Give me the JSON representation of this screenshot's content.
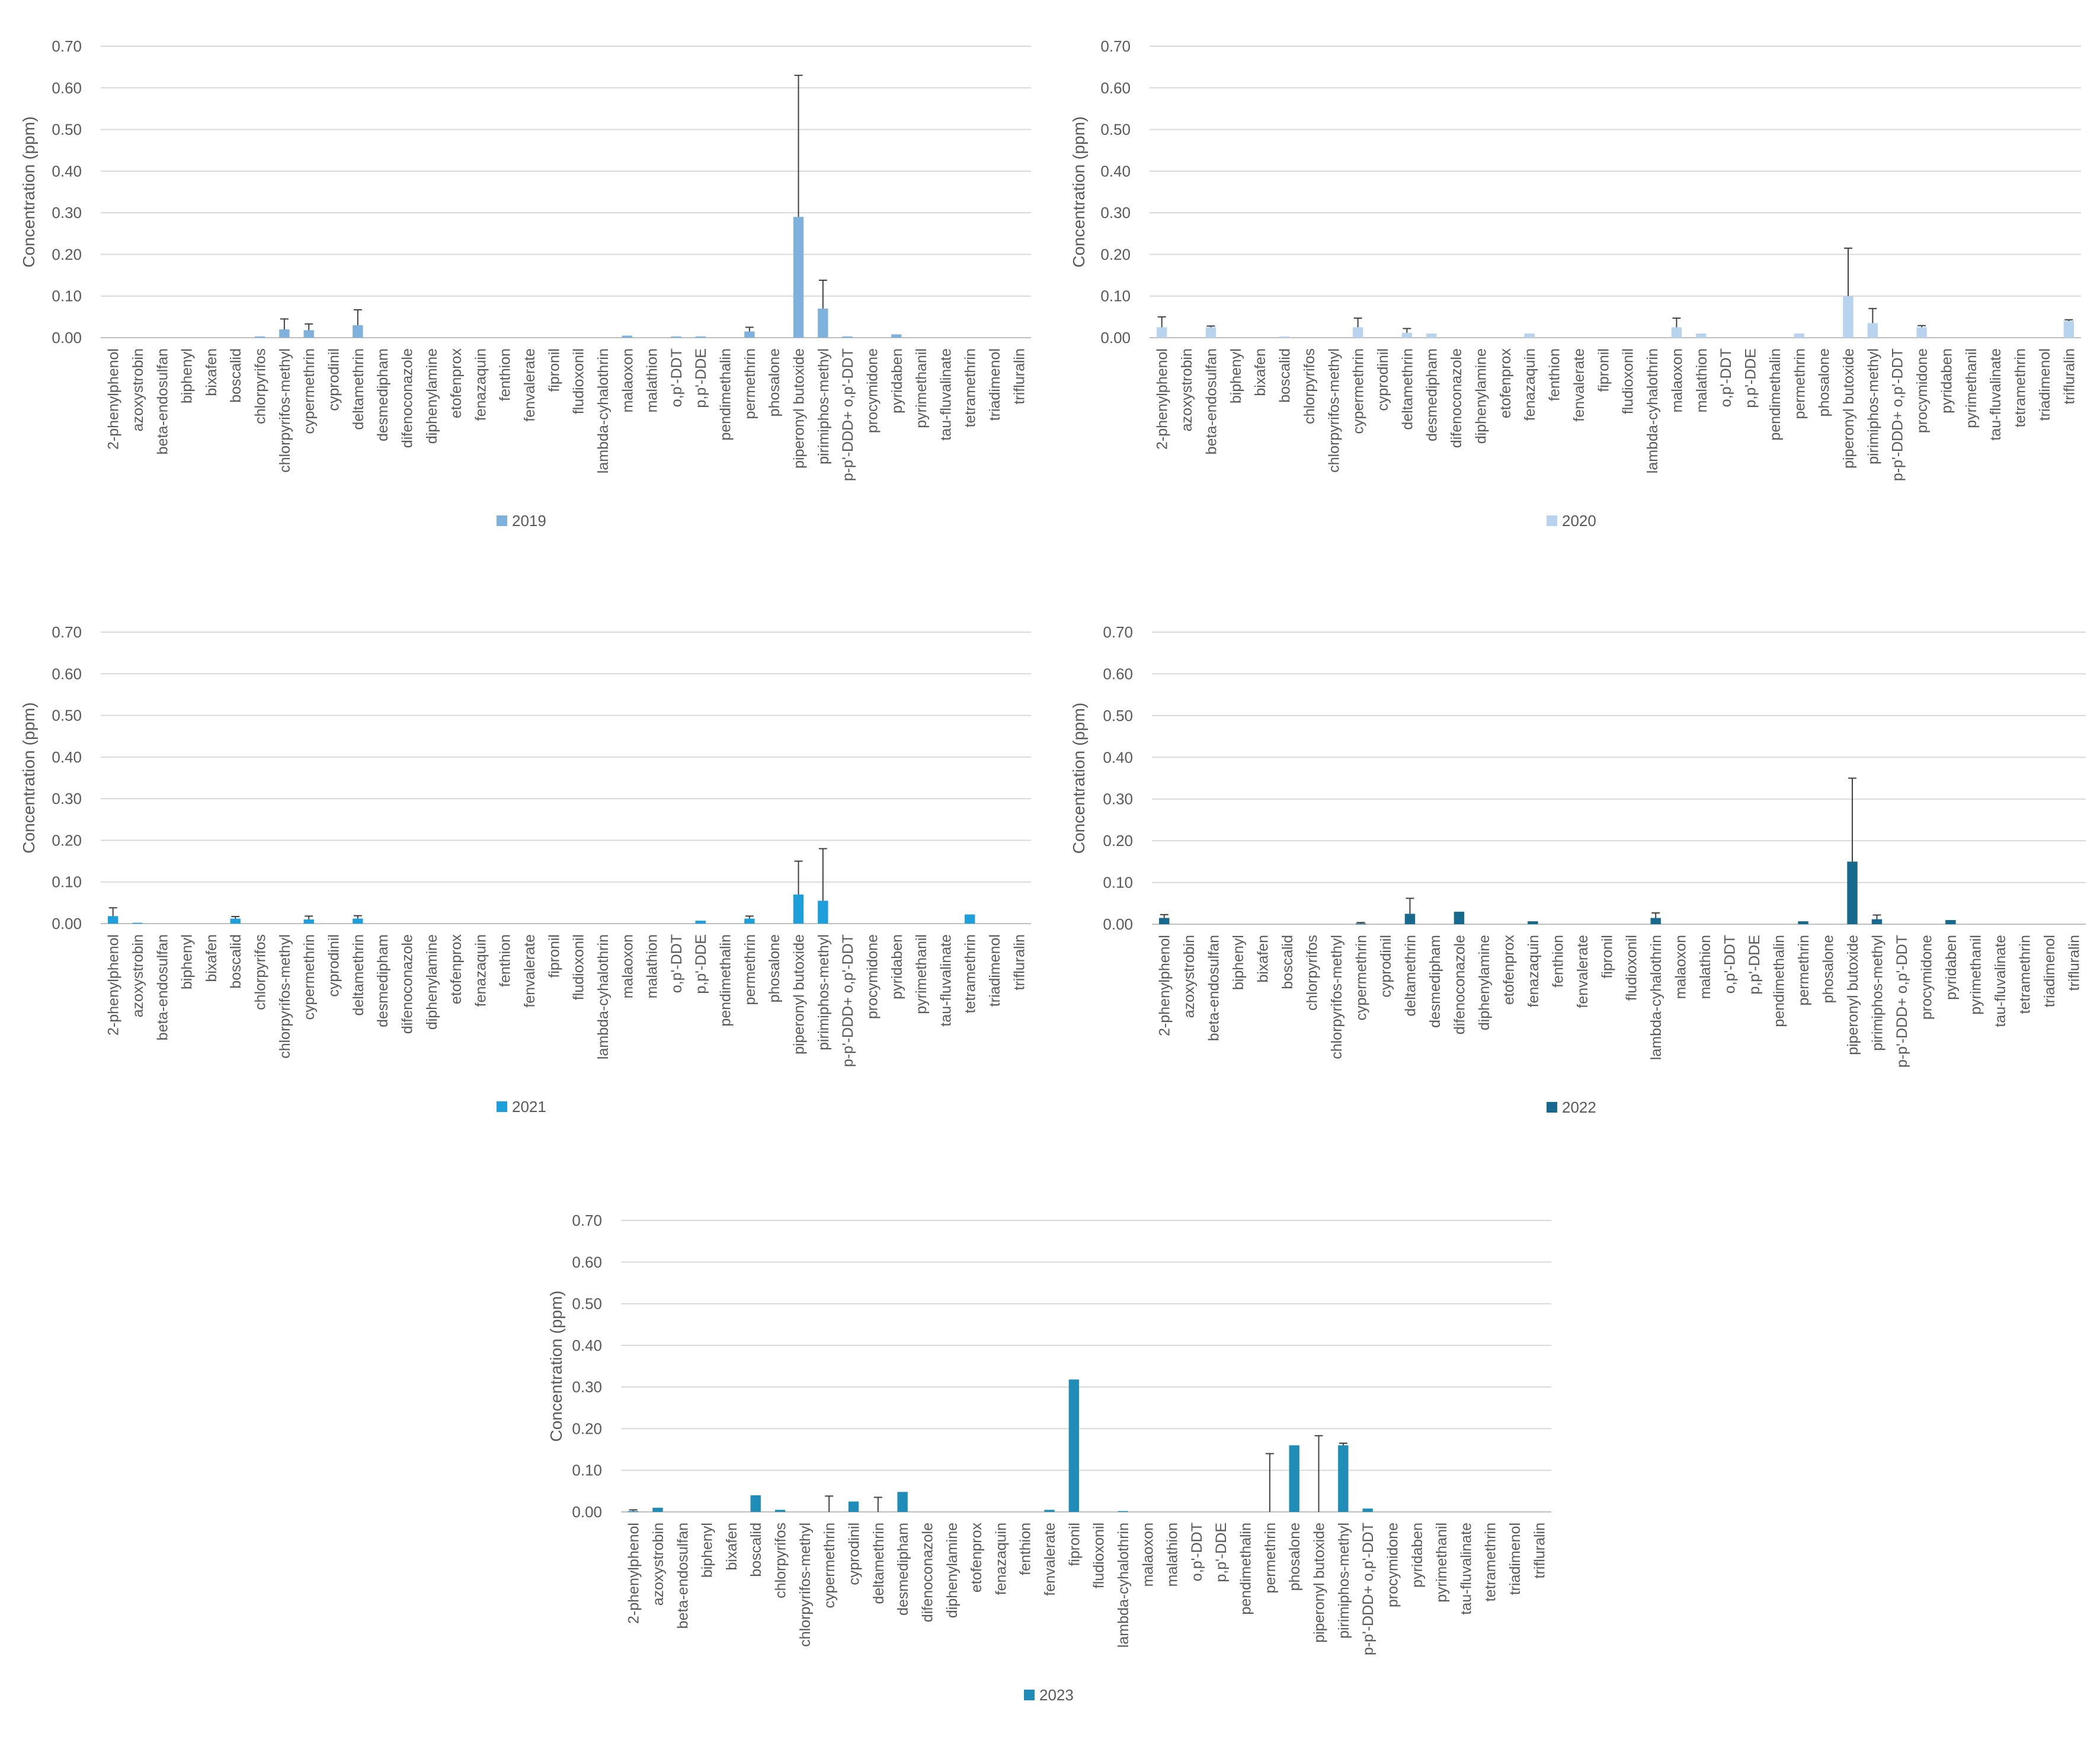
{
  "chart_data": [
    {
      "type": "bar",
      "id": "2019",
      "ylabel": "Concentration (ppm)",
      "ylim": [
        0,
        0.7
      ],
      "yticks": [
        "0.00",
        "0.10",
        "0.20",
        "0.30",
        "0.40",
        "0.50",
        "0.60",
        "0.70"
      ],
      "legend_position": "bottom",
      "grid": true,
      "color": "#7EB2DC",
      "categories": [
        "2-phenylphenol",
        "azoxystrobin",
        "beta-endosulfan",
        "biphenyl",
        "bixafen",
        "boscalid",
        "chlorpyrifos",
        "chlorpyrifos-methyl",
        "cypermethrin",
        "cyprodinil",
        "deltamethrin",
        "desmedipham",
        "difenoconazole",
        "diphenylamine",
        "etofenprox",
        "fenazaquin",
        "fenthion",
        "fenvalerate",
        "fipronil",
        "fludioxonil",
        "lambda-cyhalothrin",
        "malaoxon",
        "malathion",
        "o,p'-DDT",
        "p,p'-DDE",
        "pendimethalin",
        "permethrin",
        "phosalone",
        "piperonyl butoxide",
        "pirimiphos-methyl",
        "p-p'-DDD+ o,p'-DDT",
        "procymidone",
        "pyridaben",
        "pyrimethanil",
        "tau-fluvalinate",
        "tetramethrin",
        "triadimenol",
        "trifluralin"
      ],
      "series": [
        {
          "name": "2019",
          "values": [
            0,
            0,
            0,
            0,
            0,
            0,
            0.003,
            0.02,
            0.018,
            0,
            0.03,
            0,
            0,
            0,
            0,
            0,
            0,
            0,
            0,
            0,
            0,
            0.005,
            0,
            0.003,
            0.003,
            0,
            0.015,
            0,
            0.29,
            0.07,
            0.003,
            0,
            0.008,
            0,
            0,
            0,
            0,
            0
          ],
          "errors": [
            0,
            0,
            0,
            0,
            0,
            0,
            0,
            0.025,
            0.015,
            0,
            0.037,
            0,
            0,
            0,
            0,
            0,
            0,
            0,
            0,
            0,
            0,
            0,
            0,
            0,
            0,
            0,
            0.01,
            0,
            0.34,
            0.068,
            0,
            0,
            0,
            0,
            0,
            0,
            0,
            0
          ]
        }
      ]
    },
    {
      "type": "bar",
      "id": "2020",
      "ylabel": "Concentration (ppm)",
      "ylim": [
        0,
        0.7
      ],
      "yticks": [
        "0.00",
        "0.10",
        "0.20",
        "0.30",
        "0.40",
        "0.50",
        "0.60",
        "0.70"
      ],
      "legend_position": "bottom",
      "grid": true,
      "color": "#B7D3EE",
      "categories": [
        "2-phenylphenol",
        "azoxystrobin",
        "beta-endosulfan",
        "biphenyl",
        "bixafen",
        "boscalid",
        "chlorpyrifos",
        "chlorpyrifos-methyl",
        "cypermethrin",
        "cyprodinil",
        "deltamethrin",
        "desmedipham",
        "difenoconazole",
        "diphenylamine",
        "etofenprox",
        "fenazaquin",
        "fenthion",
        "fenvalerate",
        "fipronil",
        "fludioxonil",
        "lambda-cyhalothrin",
        "malaoxon",
        "malathion",
        "o,p'-DDT",
        "p,p'-DDE",
        "pendimethalin",
        "permethrin",
        "phosalone",
        "piperonyl butoxide",
        "pirimiphos-methyl",
        "p-p'-DDD+ o,p'-DDT",
        "procymidone",
        "pyridaben",
        "pyrimethanil",
        "tau-fluvalinate",
        "tetramethrin",
        "triadimenol",
        "trifluralin"
      ],
      "series": [
        {
          "name": "2020",
          "values": [
            0.025,
            0,
            0.025,
            0,
            0,
            0.003,
            0,
            0,
            0.025,
            0,
            0.012,
            0.01,
            0,
            0,
            0,
            0.01,
            0,
            0,
            0,
            0,
            0,
            0.025,
            0.01,
            0,
            0,
            0,
            0.01,
            0,
            0.1,
            0.035,
            0,
            0.025,
            0,
            0,
            0,
            0,
            0,
            0.04
          ],
          "errors": [
            0.025,
            0,
            0.003,
            0,
            0,
            0,
            0,
            0,
            0.022,
            0,
            0.01,
            0,
            0,
            0,
            0,
            0,
            0,
            0,
            0,
            0,
            0,
            0.022,
            0,
            0,
            0,
            0,
            0,
            0,
            0.115,
            0.035,
            0,
            0.004,
            0,
            0,
            0,
            0,
            0,
            0.003
          ]
        }
      ]
    },
    {
      "type": "bar",
      "id": "2021",
      "ylabel": "Concentration (ppm)",
      "ylim": [
        0,
        0.7
      ],
      "yticks": [
        "0.00",
        "0.10",
        "0.20",
        "0.30",
        "0.40",
        "0.50",
        "0.60",
        "0.70"
      ],
      "legend_position": "bottom",
      "grid": true,
      "color": "#1D9FDB",
      "categories": [
        "2-phenylphenol",
        "azoxystrobin",
        "beta-endosulfan",
        "biphenyl",
        "bixafen",
        "boscalid",
        "chlorpyrifos",
        "chlorpyrifos-methyl",
        "cypermethrin",
        "cyprodinil",
        "deltamethrin",
        "desmedipham",
        "difenoconazole",
        "diphenylamine",
        "etofenprox",
        "fenazaquin",
        "fenthion",
        "fenvalerate",
        "fipronil",
        "fludioxonil",
        "lambda-cyhalothrin",
        "malaoxon",
        "malathion",
        "o,p'-DDT",
        "p,p'-DDE",
        "pendimethalin",
        "permethrin",
        "phosalone",
        "piperonyl butoxide",
        "pirimiphos-methyl",
        "p-p'-DDD+ o,p'-DDT",
        "procymidone",
        "pyridaben",
        "pyrimethanil",
        "tau-fluvalinate",
        "tetramethrin",
        "triadimenol",
        "trifluralin"
      ],
      "series": [
        {
          "name": "2021",
          "values": [
            0.018,
            0.002,
            0,
            0,
            0,
            0.012,
            0,
            0,
            0.01,
            0,
            0.012,
            0,
            0,
            0,
            0,
            0,
            0,
            0,
            0,
            0,
            0,
            0,
            0,
            0,
            0.007,
            0,
            0.012,
            0,
            0.07,
            0.055,
            0,
            0,
            0,
            0,
            0,
            0.022,
            0,
            0
          ],
          "errors": [
            0.02,
            0,
            0,
            0,
            0,
            0.005,
            0,
            0,
            0.008,
            0,
            0.007,
            0,
            0,
            0,
            0,
            0,
            0,
            0,
            0,
            0,
            0,
            0,
            0,
            0,
            0,
            0,
            0.006,
            0,
            0.08,
            0.125,
            0,
            0,
            0,
            0,
            0,
            0,
            0,
            0
          ]
        }
      ]
    },
    {
      "type": "bar",
      "id": "2022",
      "ylabel": "Concentration (ppm)",
      "ylim": [
        0,
        0.7
      ],
      "yticks": [
        "0.00",
        "0.10",
        "0.20",
        "0.30",
        "0.40",
        "0.50",
        "0.60",
        "0.70"
      ],
      "legend_position": "bottom",
      "grid": true,
      "color": "#17698E",
      "categories": [
        "2-phenylphenol",
        "azoxystrobin",
        "beta-endosulfan",
        "biphenyl",
        "bixafen",
        "boscalid",
        "chlorpyrifos",
        "chlorpyrifos-methyl",
        "cypermethrin",
        "cyprodinil",
        "deltamethrin",
        "desmedipham",
        "difenoconazole",
        "diphenylamine",
        "etofenprox",
        "fenazaquin",
        "fenthion",
        "fenvalerate",
        "fipronil",
        "fludioxonil",
        "lambda-cyhalothrin",
        "malaoxon",
        "malathion",
        "o,p'-DDT",
        "p,p'-DDE",
        "pendimethalin",
        "permethrin",
        "phosalone",
        "piperonyl butoxide",
        "pirimiphos-methyl",
        "p-p'-DDD+ o,p'-DDT",
        "procymidone",
        "pyridaben",
        "pyrimethanil",
        "tau-fluvalinate",
        "tetramethrin",
        "triadimenol",
        "trifluralin"
      ],
      "series": [
        {
          "name": "2022",
          "values": [
            0.015,
            0,
            0,
            0,
            0,
            0,
            0,
            0,
            0.002,
            0,
            0.025,
            0,
            0.03,
            0,
            0,
            0.007,
            0,
            0,
            0,
            0,
            0.015,
            0,
            0,
            0,
            0,
            0,
            0.007,
            0,
            0.15,
            0.012,
            0,
            0,
            0.01,
            0,
            0,
            0,
            0,
            0
          ],
          "errors": [
            0.008,
            0,
            0,
            0,
            0,
            0,
            0,
            0,
            0.002,
            0,
            0.037,
            0,
            0,
            0,
            0,
            0,
            0,
            0,
            0,
            0,
            0.012,
            0,
            0,
            0,
            0,
            0,
            0,
            0,
            0.2,
            0.01,
            0,
            0,
            0,
            0,
            0,
            0,
            0,
            0
          ]
        }
      ]
    },
    {
      "type": "bar",
      "id": "2023",
      "ylabel": "Concentration (ppm)",
      "ylim": [
        0,
        0.7
      ],
      "yticks": [
        "0.00",
        "0.10",
        "0.20",
        "0.30",
        "0.40",
        "0.50",
        "0.60",
        "0.70"
      ],
      "legend_position": "bottom",
      "grid": true,
      "color": "#1F8DB8",
      "categories": [
        "2-phenylphenol",
        "azoxystrobin",
        "beta-endosulfan",
        "biphenyl",
        "bixafen",
        "boscalid",
        "chlorpyrifos",
        "chlorpyrifos-methyl",
        "cypermethrin",
        "cyprodinil",
        "deltamethrin",
        "desmedipham",
        "difenoconazole",
        "diphenylamine",
        "etofenprox",
        "fenazaquin",
        "fenthion",
        "fenvalerate",
        "fipronil",
        "fludioxonil",
        "lambda-cyhalothrin",
        "malaoxon",
        "malathion",
        "o,p'-DDT",
        "p,p'-DDE",
        "pendimethalin",
        "permethrin",
        "phosalone",
        "piperonyl butoxide",
        "pirimiphos-methyl",
        "p-p'-DDD+ o,p'-DDT",
        "procymidone",
        "pyridaben",
        "pyrimethanil",
        "tau-fluvalinate",
        "tetramethrin",
        "triadimenol",
        "trifluralin"
      ],
      "series": [
        {
          "name": "2023",
          "values": [
            0.002,
            0.01,
            0,
            0,
            0,
            0.04,
            0.005,
            0,
            0,
            0.025,
            0,
            0.048,
            0,
            0,
            0,
            0,
            0,
            0.005,
            0.318,
            0,
            0.002,
            0,
            0,
            0,
            0,
            0,
            0,
            0.16,
            0,
            0.16,
            0.008,
            0,
            0,
            0,
            0,
            0,
            0,
            0
          ],
          "errors": [
            0.003,
            0,
            0,
            0,
            0,
            0,
            0,
            0,
            0.038,
            0,
            0.035,
            0,
            0,
            0,
            0,
            0,
            0,
            0,
            0,
            0,
            0,
            0,
            0,
            0,
            0,
            0,
            0.14,
            0,
            0.183,
            0.005,
            0,
            0,
            0,
            0,
            0,
            0,
            0,
            0
          ]
        }
      ]
    }
  ]
}
